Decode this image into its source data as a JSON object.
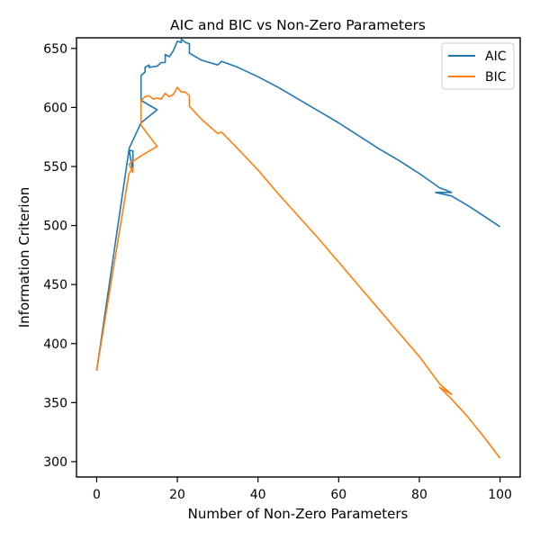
{
  "chart_data": {
    "type": "line",
    "title": "AIC and BIC vs Non-Zero Parameters",
    "xlabel": "Number of Non-Zero Parameters",
    "ylabel": "Information Criterion",
    "xlim": [
      -5,
      105
    ],
    "ylim": [
      287,
      659
    ],
    "xticks": [
      0,
      20,
      40,
      60,
      80,
      100
    ],
    "yticks": [
      300,
      350,
      400,
      450,
      500,
      550,
      600,
      650
    ],
    "legend_position": "top-right",
    "grid": false,
    "series": [
      {
        "name": "AIC",
        "color": "#1f77b4",
        "points": [
          [
            0,
            377
          ],
          [
            8,
            564
          ],
          [
            9,
            563
          ],
          [
            9,
            545
          ],
          [
            8,
            565
          ],
          [
            11,
            587
          ],
          [
            15,
            598
          ],
          [
            11,
            606
          ],
          [
            11,
            627
          ],
          [
            12,
            630
          ],
          [
            12,
            634
          ],
          [
            13,
            636
          ],
          [
            13,
            634
          ],
          [
            15,
            635
          ],
          [
            16,
            638
          ],
          [
            17,
            638
          ],
          [
            17,
            645
          ],
          [
            18,
            643
          ],
          [
            19,
            648
          ],
          [
            20,
            656
          ],
          [
            21,
            655
          ],
          [
            21,
            658
          ],
          [
            22,
            655
          ],
          [
            23,
            654
          ],
          [
            23,
            646
          ],
          [
            26,
            640
          ],
          [
            28,
            638
          ],
          [
            30,
            636
          ],
          [
            31,
            639
          ],
          [
            35,
            634
          ],
          [
            40,
            626
          ],
          [
            45,
            617
          ],
          [
            50,
            607
          ],
          [
            55,
            597
          ],
          [
            60,
            587
          ],
          [
            65,
            576
          ],
          [
            70,
            565
          ],
          [
            75,
            555
          ],
          [
            80,
            544
          ],
          [
            85,
            532
          ],
          [
            88,
            528
          ],
          [
            84,
            528
          ],
          [
            88,
            525
          ],
          [
            92,
            517
          ],
          [
            96,
            508
          ],
          [
            100,
            499
          ]
        ]
      },
      {
        "name": "BIC",
        "color": "#ff7f0e",
        "points": [
          [
            0,
            377
          ],
          [
            8,
            544
          ],
          [
            9,
            549
          ],
          [
            9,
            545
          ],
          [
            8,
            552
          ],
          [
            11,
            559
          ],
          [
            15,
            567
          ],
          [
            11,
            585
          ],
          [
            11,
            606
          ],
          [
            12,
            609
          ],
          [
            13,
            610
          ],
          [
            14,
            607
          ],
          [
            15,
            608
          ],
          [
            16,
            607
          ],
          [
            17,
            612
          ],
          [
            18,
            609
          ],
          [
            19,
            611
          ],
          [
            20,
            617
          ],
          [
            21,
            613
          ],
          [
            22,
            613
          ],
          [
            23,
            610
          ],
          [
            23,
            601
          ],
          [
            26,
            590
          ],
          [
            28,
            584
          ],
          [
            30,
            578
          ],
          [
            31,
            579
          ],
          [
            35,
            565
          ],
          [
            40,
            547
          ],
          [
            45,
            527
          ],
          [
            50,
            508
          ],
          [
            55,
            489
          ],
          [
            60,
            469
          ],
          [
            65,
            449
          ],
          [
            70,
            429
          ],
          [
            75,
            409
          ],
          [
            80,
            389
          ],
          [
            85,
            366
          ],
          [
            88,
            357
          ],
          [
            85,
            363
          ],
          [
            88,
            353
          ],
          [
            92,
            338
          ],
          [
            96,
            321
          ],
          [
            100,
            303
          ]
        ]
      }
    ]
  }
}
